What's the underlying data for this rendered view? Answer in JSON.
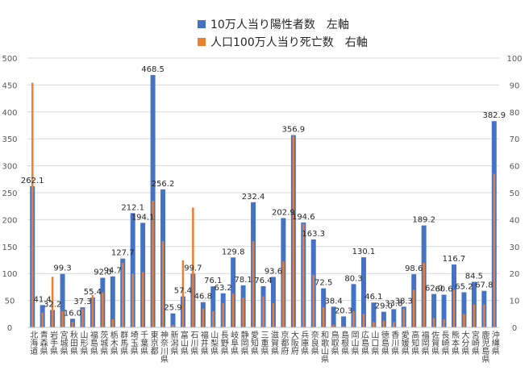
{
  "chart_data": {
    "type": "bar",
    "legend": {
      "position": "top-right"
    },
    "y_left": {
      "min": 0,
      "max": 500,
      "ticks": [
        0,
        50,
        100,
        150,
        200,
        250,
        300,
        350,
        400,
        450,
        500
      ]
    },
    "y_right": {
      "min": 0,
      "max": 100,
      "ticks": [
        0,
        10,
        20,
        30,
        40,
        50,
        60,
        70,
        80,
        90,
        100
      ]
    },
    "grid": true,
    "colors": {
      "series1": "#4472C4",
      "series2": "#ED7D31"
    },
    "categories": [
      "北海道",
      "青森県",
      "岩手県",
      "宮城県",
      "秋田県",
      "山形県",
      "福島県",
      "茨城県",
      "栃木県",
      "群馬県",
      "埼玉県",
      "千葉県",
      "東京都",
      "神奈川県",
      "新潟県",
      "富山県",
      "石川県",
      "福井県",
      "山梨県",
      "長野県",
      "岐阜県",
      "静岡県",
      "愛知県",
      "三重県",
      "滋賀県",
      "京都府",
      "大阪府",
      "兵庫県",
      "奈良県",
      "和歌山県",
      "鳥取県",
      "島根県",
      "岡山県",
      "広島県",
      "山口県",
      "徳島県",
      "香川県",
      "愛媛県",
      "高知県",
      "福岡県",
      "佐賀県",
      "長崎県",
      "熊本県",
      "大分県",
      "宮崎県",
      "鹿児島県",
      "沖縄県"
    ],
    "series": [
      {
        "name": "10万人当り陽性者数　左軸",
        "axis": "left",
        "values": [
          262.1,
          41.4,
          32.2,
          99.3,
          16.0,
          37.3,
          55.4,
          92.0,
          94.7,
          127.7,
          212.1,
          194.1,
          468.5,
          256.2,
          25.9,
          57.4,
          99.7,
          46.8,
          76.1,
          63.2,
          129.8,
          78.1,
          232.4,
          76.4,
          93.6,
          202.9,
          356.9,
          194.6,
          163.3,
          72.5,
          38.4,
          20.3,
          80.3,
          130.1,
          46.1,
          29.0,
          33.8,
          38.3,
          98.6,
          189.2,
          62.0,
          60.6,
          116.7,
          65.2,
          84.5,
          67.8,
          382.9
        ],
        "labels": [
          "262.1",
          "41.4",
          "32.2",
          "99.3",
          "16.0",
          "37.3",
          "55.4",
          "92.0",
          "94.7",
          "127.7",
          "212.1",
          "194.1",
          "468.5",
          "256.2",
          "25.9",
          "57.4",
          "99.7",
          "46.8",
          "76.1",
          "63.2",
          "129.8",
          "78.1",
          "232.4",
          "76.4",
          "93.6",
          "202.9",
          "356.9",
          "194.6",
          "163.3",
          "72.5",
          "38.4",
          "20.3",
          "80.3",
          "130.1",
          "46.1",
          "29.0",
          "33.8",
          "38.3",
          "98.6",
          "189.2",
          "62.0",
          "60.6",
          "116.7",
          "65.2",
          "84.5",
          "67.8",
          "382.9"
        ]
      },
      {
        "name": "人口100万人当り死亡数　右軸",
        "axis": "right",
        "values": [
          90.8,
          5.5,
          18.8,
          6.0,
          2.0,
          7.0,
          12.0,
          13.0,
          3.0,
          24.0,
          20.0,
          20.5,
          47.0,
          32.0,
          1.0,
          24.9,
          44.5,
          7.0,
          6.0,
          9.0,
          12.5,
          11.0,
          32.0,
          11.5,
          9.0,
          24.5,
          71.0,
          38.5,
          19.5,
          7.5,
          1.0,
          0.5,
          6.0,
          5.0,
          2.0,
          2.5,
          2.0,
          7.0,
          14.0,
          24.0,
          3.5,
          3.0,
          14.0,
          5.0,
          8.5,
          8.5,
          57.0
        ]
      }
    ]
  }
}
